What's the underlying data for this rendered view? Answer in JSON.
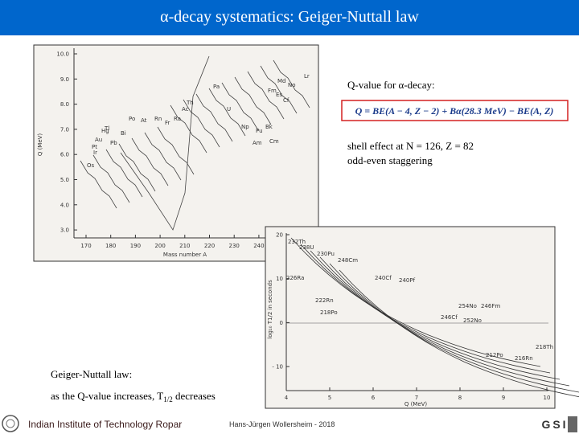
{
  "title": "α-decay systematics: Geiger-Nuttall law",
  "figure_left": {
    "y_label": "Q (MeV)",
    "x_label": "Mass number A",
    "yticks": [
      "10.0",
      "9.0",
      "8.0",
      "7.0",
      "6.0",
      "5.0",
      "4.0",
      "3.0"
    ],
    "xticks": [
      "170",
      "180",
      "190",
      "200",
      "210",
      "220",
      "230",
      "240"
    ],
    "labels": [
      "Lr",
      "Md",
      "No",
      "Fm",
      "Es",
      "Cf",
      "Bk",
      "Cm",
      "Am",
      "Pu",
      "Np",
      "U",
      "Pa",
      "Th",
      "Ac",
      "Ra",
      "Fr",
      "Rn",
      "At",
      "Po",
      "Bi",
      "Pb",
      "Tl",
      "Hg",
      "Au",
      "Pt",
      "Ir",
      "Os"
    ]
  },
  "qvalue": {
    "heading": "Q-value for α-decay:",
    "formula": "Q = BE(A − 4, Z − 2) + Bα(28.3 MeV) − BE(A, Z)"
  },
  "notes": [
    "shell effect at N = 126, Z = 82",
    "odd-even staggering"
  ],
  "figure_right": {
    "y_label": "log₁₀ T1/2 in seconds",
    "x_label": "Q (MeV)",
    "yticks": [
      "20",
      "10",
      "0",
      "- 10"
    ],
    "xticks": [
      "4",
      "5",
      "6",
      "7",
      "8",
      "9",
      "10"
    ],
    "labels": [
      "232Th",
      "238U",
      "230Pu",
      "248Cm",
      "226Ra",
      "222Rn",
      "218Po",
      "240Cf",
      "240Pf",
      "246Cf",
      "254No",
      "246Fm",
      "252No",
      "218Th",
      "212Po",
      "216Rn"
    ]
  },
  "geiger_nuttall": {
    "heading": "Geiger-Nuttall law:",
    "text_before": "as the Q-value increases, T",
    "subscript": "1/2",
    "text_after": " decreases"
  },
  "footer": {
    "institute": "Indian Institute of Technology Ropar",
    "author": "Hans-Jürgen Wollersheim - 2018",
    "logo_right": "GSI"
  }
}
